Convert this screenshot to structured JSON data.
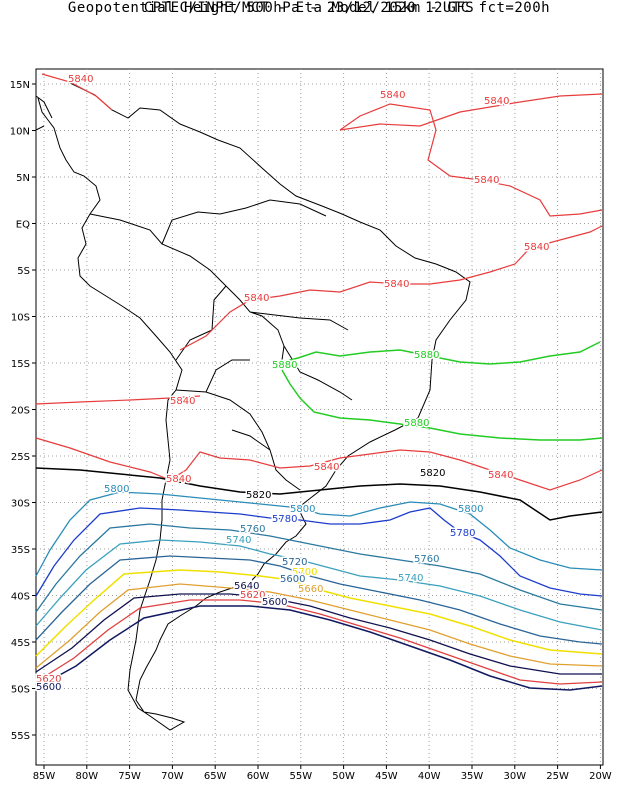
{
  "title_line1": "CPTEC/INPE/MCT -  Eta Model 15km - GFS",
  "title_line2": "Geopotential Height 500hPa - 23/12/2020 12UTC fct=200h",
  "lat_labels": [
    "15N",
    "10N",
    "5N",
    "EQ",
    "5S",
    "10S",
    "15S",
    "20S",
    "25S",
    "30S",
    "35S",
    "40S",
    "45S",
    "50S",
    "55S"
  ],
  "lon_labels": [
    "85W",
    "80W",
    "75W",
    "70W",
    "65W",
    "60W",
    "55W",
    "50W",
    "45W",
    "40W",
    "35W",
    "30W",
    "25W",
    "20W"
  ],
  "colors": {
    "c5880": "#22cc22",
    "c5840": "#e83c3c",
    "c5820": "#000000",
    "c5800": "#2a8cb8",
    "c5780": "#1c3ccc",
    "c5760": "#2a78a0",
    "c5740": "#3aa0bc",
    "c5720": "#2a6496",
    "c5700": "#f0e000",
    "c5660": "#e0a030",
    "c5640": "#101050",
    "c5620": "#e04040",
    "c5600": "#101860",
    "land": "#000000",
    "grid": "#999999"
  },
  "contours": [
    {
      "value": "5880"
    },
    {
      "value": "5840"
    },
    {
      "value": "5820"
    },
    {
      "value": "5800"
    },
    {
      "value": "5780"
    },
    {
      "value": "5760"
    },
    {
      "value": "5740"
    },
    {
      "value": "5720"
    },
    {
      "value": "5700"
    },
    {
      "value": "5660"
    },
    {
      "value": "5640"
    },
    {
      "value": "5620"
    },
    {
      "value": "5600"
    }
  ]
}
